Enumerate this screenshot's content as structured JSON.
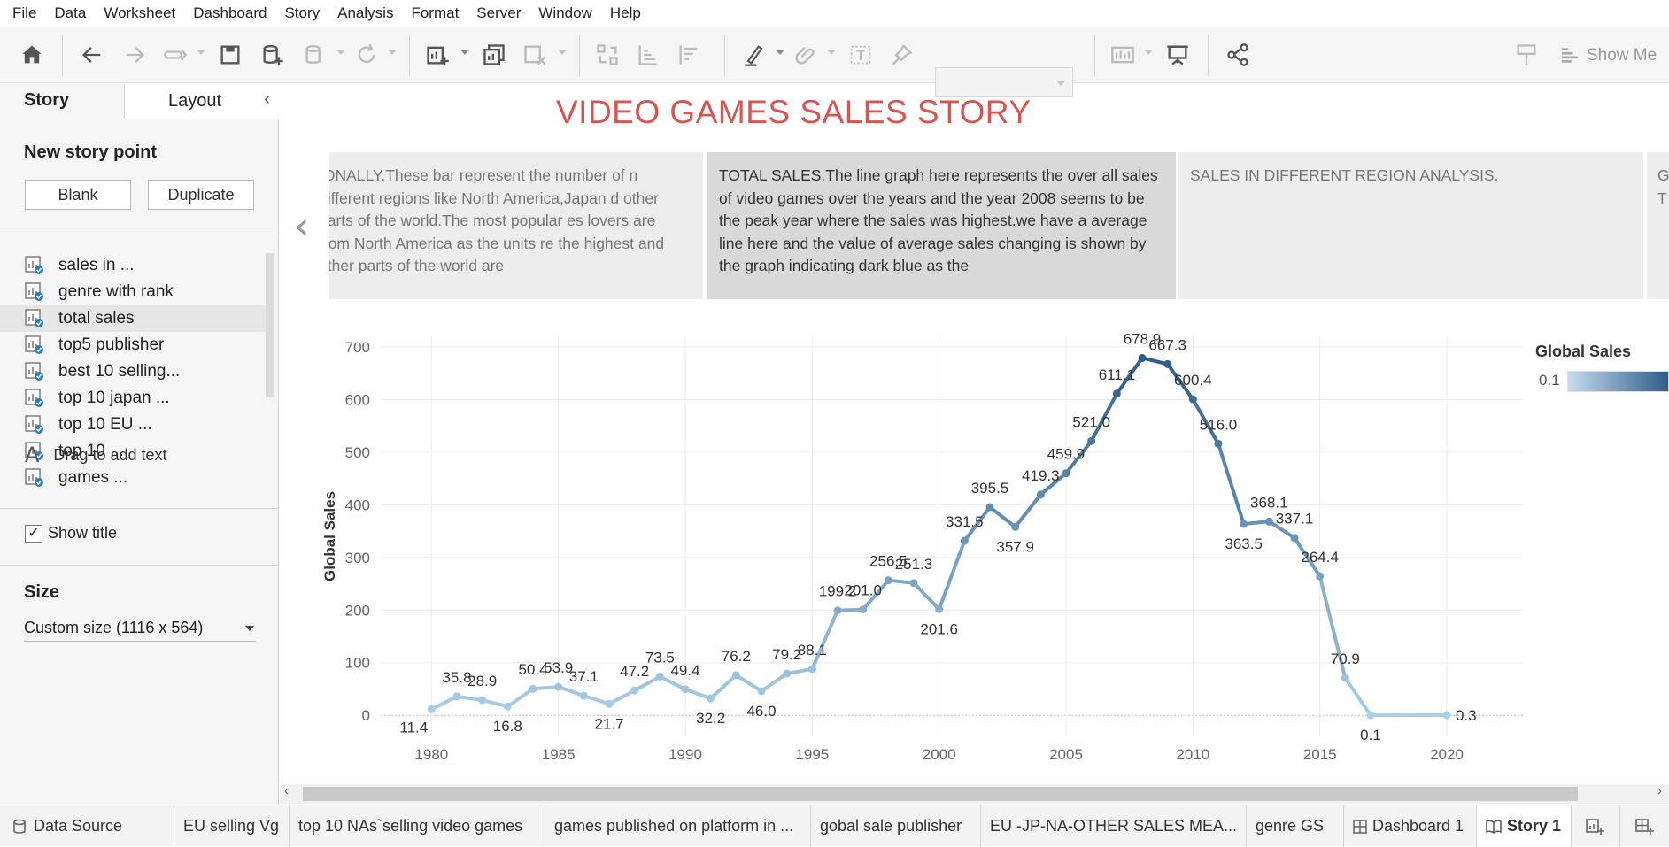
{
  "menu": [
    "File",
    "Data",
    "Worksheet",
    "Dashboard",
    "Story",
    "Analysis",
    "Format",
    "Server",
    "Window",
    "Help"
  ],
  "toolbar": {
    "show_me": "Show Me"
  },
  "left_pane": {
    "tab_story": "Story",
    "tab_layout": "Layout",
    "collapse": "‹",
    "new_story_point": "New story point",
    "blank_button": "Blank",
    "duplicate_button": "Duplicate",
    "story_points": [
      {
        "label": "sales in ..."
      },
      {
        "label": "genre with rank"
      },
      {
        "label": "total sales"
      },
      {
        "label": "top5 publisher"
      },
      {
        "label": "best 10 selling..."
      },
      {
        "label": "top 10 japan ..."
      },
      {
        "label": "top 10 EU ..."
      },
      {
        "label": "top 10 ..."
      },
      {
        "label": "games ..."
      }
    ],
    "drag_icon": "A",
    "drag_text": "Drag to add text",
    "show_title_check": "✓",
    "show_title": "Show title",
    "size_label": "Size",
    "size_value": "Custom size (1116 x 564)"
  },
  "story": {
    "title": "VIDEO GAMES SALES STORY",
    "nav_prev": "‹",
    "points": [
      {
        "text": "IONALLY.These bar represent the number of n different regions like North America,Japan d other parts of the world.The most popular es lovers are from North  America as the units re the highest and other parts of  the world are"
      },
      {
        "text": "TOTAL SALES.The line graph here represents the over all sales of video games over the years and the year 2008 seems to be the peak year where the sales was highest.we have a average line here and the value of average sales changing is shown by the graph indicating dark blue as the"
      },
      {
        "text": "SALES IN DIFFERENT REGION ANALYSIS."
      },
      {
        "text": "G T"
      }
    ]
  },
  "legend": {
    "title": "Global Sales",
    "min": "0.1"
  },
  "chart_data": {
    "type": "line",
    "ylabel": "Global Sales",
    "xlabel": "",
    "x_ticks": [
      "1980",
      "1985",
      "1990",
      "1995",
      "2000",
      "2005",
      "2010",
      "2015",
      "2020"
    ],
    "y_ticks": [
      "0",
      "100",
      "200",
      "300",
      "400",
      "500",
      "600",
      "700"
    ],
    "xlim": [
      1978,
      2023
    ],
    "ylim": [
      -40,
      720
    ],
    "x": [
      1980,
      1981,
      1982,
      1983,
      1984,
      1985,
      1986,
      1987,
      1988,
      1989,
      1990,
      1991,
      1992,
      1993,
      1994,
      1995,
      1996,
      1997,
      1998,
      1999,
      2000,
      2001,
      2002,
      2003,
      2004,
      2005,
      2006,
      2007,
      2008,
      2009,
      2010,
      2011,
      2012,
      2013,
      2014,
      2015,
      2016,
      2017,
      2020
    ],
    "values": [
      11.4,
      35.8,
      28.9,
      16.8,
      50.4,
      53.9,
      37.1,
      21.7,
      47.2,
      73.5,
      49.4,
      32.2,
      76.2,
      46.0,
      79.2,
      88.1,
      199.2,
      201.0,
      256.5,
      251.3,
      201.6,
      331.5,
      395.5,
      357.9,
      419.3,
      459.9,
      521.0,
      611.1,
      678.9,
      667.3,
      600.4,
      516.0,
      363.5,
      368.1,
      337.1,
      264.4,
      70.9,
      0.1,
      0.3
    ],
    "labels": [
      "11.4",
      "35.8",
      "28.9",
      "16.8",
      "50.4",
      "53.9",
      "37.1",
      "21.7",
      "47.2",
      "73.5",
      "49.4",
      "32.2",
      "76.2",
      "46.0",
      "79.2",
      "88.1",
      "199.2",
      "201.0",
      "256.5",
      "251.3",
      "201.6",
      "331.5",
      "395.5",
      "357.9",
      "419.3",
      "459.9",
      "521.0",
      "611.1",
      "678.9",
      "667.3",
      "600.4",
      "516.0",
      "363.5",
      "368.1",
      "337.1",
      "264.4",
      "70.9",
      "0.1",
      "0.3"
    ],
    "color_low": "#a9cfe8",
    "color_high": "#2f5d8a"
  },
  "sheet_tabs": [
    {
      "label": "Data Source"
    },
    {
      "label": "EU selling Vg"
    },
    {
      "label": "top 10 NAs`selling video games"
    },
    {
      "label": "games published on platform in ..."
    },
    {
      "label": "gobal sale publisher"
    },
    {
      "label": "EU -JP-NA-OTHER SALES MEA..."
    },
    {
      "label": "genre GS"
    },
    {
      "label": "Dashboard 1"
    },
    {
      "label": "Story 1"
    }
  ]
}
